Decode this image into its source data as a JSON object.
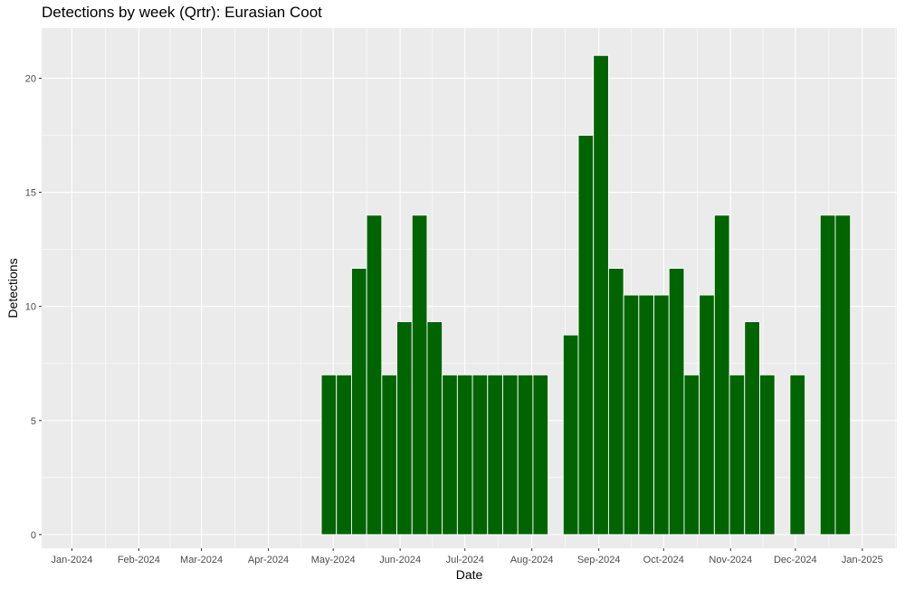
{
  "chart_data": {
    "type": "bar",
    "title": "Detections by week (Qrtr): Eurasian Coot",
    "xlabel": "Date",
    "ylabel": "Detections",
    "x_ticks": [
      "Jan-2024",
      "Feb-2024",
      "Mar-2024",
      "Apr-2024",
      "May-2024",
      "Jun-2024",
      "Jul-2024",
      "Aug-2024",
      "Sep-2024",
      "Oct-2024",
      "Nov-2024",
      "Dec-2024",
      "Jan-2025"
    ],
    "y_ticks": [
      0,
      5,
      10,
      15,
      20
    ],
    "ylim": [
      -0.6,
      22.2
    ],
    "xlim": [
      "2023-12-18",
      "2025-01-17"
    ],
    "grid": true,
    "bar_color": "#006400",
    "panel_color": "#ebebeb",
    "series": [
      {
        "values": [
          {
            "week": "2024-04-29",
            "value": 7
          },
          {
            "week": "2024-05-06",
            "value": 7
          },
          {
            "week": "2024-05-13",
            "value": 11.67
          },
          {
            "week": "2024-05-20",
            "value": 14
          },
          {
            "week": "2024-05-27",
            "value": 7
          },
          {
            "week": "2024-06-03",
            "value": 9.33
          },
          {
            "week": "2024-06-10",
            "value": 14
          },
          {
            "week": "2024-06-17",
            "value": 9.33
          },
          {
            "week": "2024-06-24",
            "value": 7
          },
          {
            "week": "2024-07-01",
            "value": 7
          },
          {
            "week": "2024-07-08",
            "value": 7
          },
          {
            "week": "2024-07-15",
            "value": 7
          },
          {
            "week": "2024-07-22",
            "value": 7
          },
          {
            "week": "2024-07-29",
            "value": 7
          },
          {
            "week": "2024-08-05",
            "value": 7
          },
          {
            "week": "2024-08-19",
            "value": 8.75
          },
          {
            "week": "2024-08-26",
            "value": 17.5
          },
          {
            "week": "2024-09-02",
            "value": 21
          },
          {
            "week": "2024-09-09",
            "value": 11.67
          },
          {
            "week": "2024-09-16",
            "value": 10.5
          },
          {
            "week": "2024-09-23",
            "value": 10.5
          },
          {
            "week": "2024-09-30",
            "value": 10.5
          },
          {
            "week": "2024-10-07",
            "value": 11.67
          },
          {
            "week": "2024-10-14",
            "value": 7
          },
          {
            "week": "2024-10-21",
            "value": 10.5
          },
          {
            "week": "2024-10-28",
            "value": 14
          },
          {
            "week": "2024-11-04",
            "value": 7
          },
          {
            "week": "2024-11-11",
            "value": 9.33
          },
          {
            "week": "2024-11-18",
            "value": 7
          },
          {
            "week": "2024-12-02",
            "value": 7
          },
          {
            "week": "2024-12-16",
            "value": 14
          },
          {
            "week": "2024-12-23",
            "value": 14
          }
        ]
      }
    ]
  }
}
